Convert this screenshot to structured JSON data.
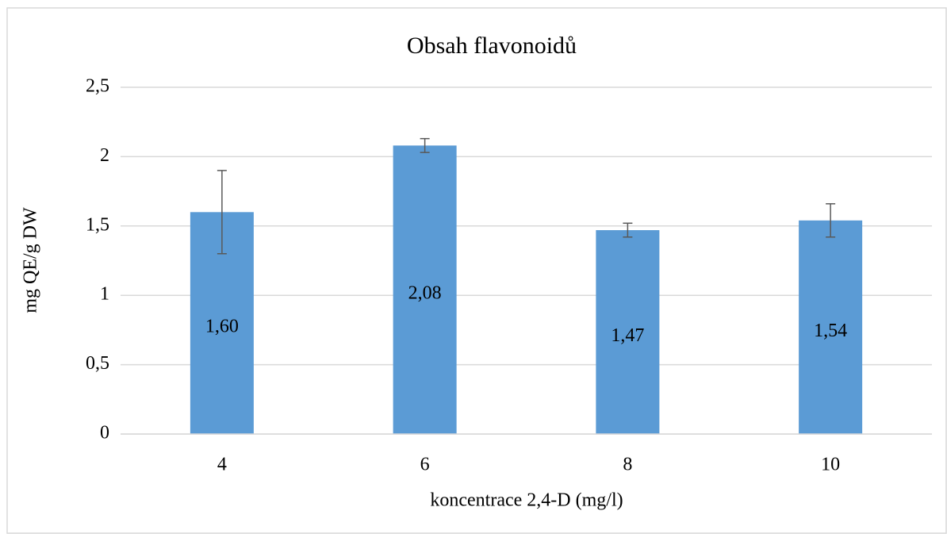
{
  "chart_data": {
    "type": "bar",
    "title": "Obsah flavonoidů",
    "x_label": "koncentrace 2,4-D (mg/l)",
    "y_label": "mg QE/g DW",
    "categories": [
      "4",
      "6",
      "8",
      "10"
    ],
    "values": [
      1.6,
      2.08,
      1.47,
      1.54
    ],
    "value_labels": [
      "1,60",
      "2,08",
      "1,47",
      "1,54"
    ],
    "errors": [
      0.3,
      0.05,
      0.05,
      0.12
    ],
    "color": "#5b9bd5",
    "ylim": [
      0,
      2.5
    ],
    "yticks": [
      0,
      {
        "value": 0.5,
        "label": "0,5"
      },
      1,
      {
        "value": 1.5,
        "label": "1,5"
      },
      2,
      {
        "value": 2.5,
        "label": "2,5"
      }
    ],
    "grid": true
  }
}
